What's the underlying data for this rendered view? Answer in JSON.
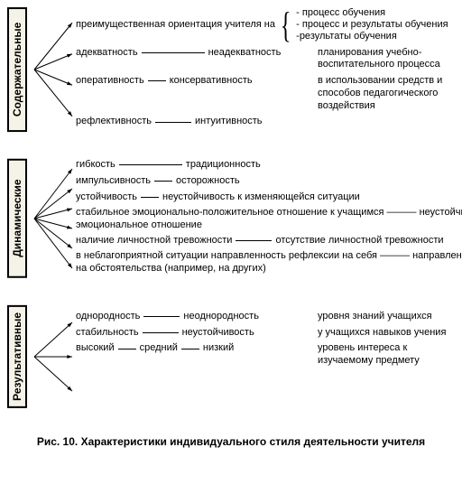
{
  "caption": "Рис. 10. Характеристики индивидуального стиля деятельности учителя",
  "sections": [
    {
      "label": "Содержательные",
      "rows": [
        {
          "type": "brace",
          "left": "преимущественная ориентация учителя на",
          "braceItems": [
            "- процесс обучения",
            "- процесс и результаты обучения",
            "-результаты обучения"
          ]
        },
        {
          "type": "pair",
          "a": "адекватность",
          "b": "неадекватность",
          "dash": "l",
          "note": "планирования учебно-воспитательного процесса"
        },
        {
          "type": "pair",
          "a": "оперативность",
          "b": "консервативность",
          "dash": "s",
          "note": "в использовании средств и способов педагогического воздействия"
        },
        {
          "type": "pair",
          "a": "рефлективность",
          "b": "интуитивность",
          "dash": "m",
          "note": ""
        }
      ]
    },
    {
      "label": "Динамические",
      "rows": [
        {
          "type": "pair",
          "a": "гибкость",
          "b": "традиционность",
          "dash": "l",
          "wide": true
        },
        {
          "type": "pair",
          "a": "импульсивность",
          "b": "осторожность",
          "dash": "s",
          "wide": true
        },
        {
          "type": "pair",
          "a": "устойчивость",
          "b": "неустойчивость к изменяющейся ситуации",
          "dash": "s",
          "wide": true
        },
        {
          "type": "long",
          "text": "стабильное эмоционально-положительное отношение к учащимся ——— неустойчивое эмоциональное отношение"
        },
        {
          "type": "pair",
          "a": "наличие личностной тревожности",
          "b": "отсутствие личностной тревожности",
          "dash": "m",
          "wide": true
        },
        {
          "type": "long",
          "text": "в неблагоприятной ситуации направленность рефлексии на себя ——— направленность на обстоятельства (например, на других)"
        }
      ]
    },
    {
      "label": "Результативные",
      "rows": [
        {
          "type": "spacer"
        },
        {
          "type": "pair",
          "a": "однородность",
          "b": "неоднородность",
          "dash": "m",
          "note": "уровня знаний учащихся"
        },
        {
          "type": "pair",
          "a": "стабильность",
          "b": "неустойчивость",
          "dash": "m",
          "note": "у учащихся навыков учения"
        },
        {
          "type": "triple",
          "a": "высокий",
          "b": "средний",
          "c": "низкий",
          "note": "уровень интереса к изучаемому предмету"
        },
        {
          "type": "spacer"
        }
      ]
    }
  ],
  "style": {
    "bg": "#ffffff",
    "text": "#000000",
    "label_bg": "#f5f3e8",
    "font_size_body": 11,
    "font_size_label": 12,
    "font_size_caption": 12
  }
}
